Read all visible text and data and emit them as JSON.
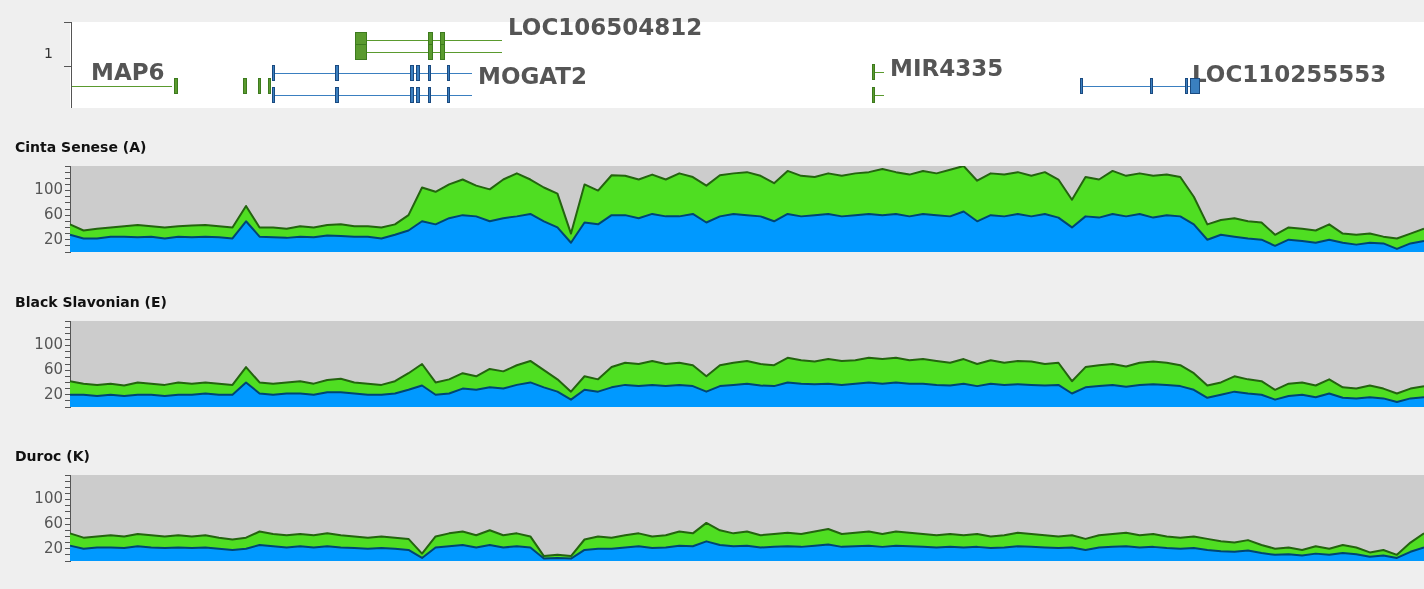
{
  "chart_data": [
    {
      "type": "other",
      "annotations": [
        "1",
        "MAP6",
        "LOC106504812",
        "MOGAT2",
        "MIR4335",
        "LOC110255553"
      ]
    },
    {
      "type": "area",
      "title": "Cinta Senese (A)",
      "stacked": true,
      "tick_labels": "y",
      "grid": false,
      "legend": false,
      "categories": [
        null,
        null,
        null,
        null,
        null,
        null,
        null,
        null,
        null,
        null,
        null,
        null,
        null,
        null,
        null,
        null,
        null,
        null,
        null,
        null,
        null,
        null,
        null,
        null,
        null,
        null,
        null,
        null,
        null,
        null,
        null,
        null,
        null,
        null,
        null,
        null,
        null,
        null,
        null,
        null,
        null,
        null,
        null,
        null,
        null,
        null,
        null,
        null,
        null,
        null,
        null,
        null,
        null,
        null,
        null,
        null,
        null,
        null,
        null,
        null,
        null,
        null,
        null,
        null,
        null,
        null,
        null,
        null,
        null,
        null,
        null,
        null,
        null,
        null,
        null,
        null,
        null,
        null,
        null,
        null,
        null,
        null,
        null,
        null,
        null,
        null,
        null,
        null,
        null,
        null,
        null,
        null,
        null,
        null,
        null,
        null,
        null,
        null,
        null,
        null,
        null
      ],
      "ylim": [
        0,
        140
      ],
      "yticks": [
        {
          "value": 0,
          "label": null
        },
        {
          "value": 10,
          "label": null
        },
        20,
        {
          "value": 30,
          "label": null
        },
        {
          "value": 40,
          "label": null
        },
        {
          "value": 50,
          "label": null
        },
        60,
        {
          "value": 70,
          "label": null
        },
        {
          "value": 80,
          "label": null
        },
        {
          "value": 90,
          "label": null
        },
        100,
        {
          "value": 110,
          "label": null
        },
        {
          "value": 120,
          "label": null
        },
        {
          "value": 130,
          "label": null
        },
        {
          "value": 140,
          "label": null
        }
      ],
      "series": [
        {
          "color": "#0099ff",
          "values": [
            28,
            22,
            22,
            25,
            25,
            24,
            25,
            22,
            25,
            24,
            25,
            24,
            22,
            50,
            25,
            24,
            23,
            25,
            24,
            27,
            26,
            25,
            25,
            22,
            28,
            35,
            50,
            45,
            55,
            60,
            58,
            50,
            55,
            58,
            62,
            50,
            40,
            15,
            48,
            45,
            60,
            60,
            55,
            62,
            58,
            58,
            62,
            48,
            58,
            62,
            60,
            58,
            50,
            62,
            58,
            60,
            62,
            58,
            60,
            62,
            60,
            62,
            58,
            62,
            60,
            58,
            66,
            50,
            60,
            58,
            62,
            58,
            62,
            56,
            40,
            58,
            56,
            62,
            58,
            62,
            56,
            60,
            58,
            45,
            20,
            28,
            25,
            22,
            20,
            10,
            20,
            18,
            15,
            20,
            15,
            12,
            15,
            14,
            5,
            14,
            18
          ]
        },
        {
          "color": "#4fde22",
          "values": [
            17,
            13,
            16,
            15,
            17,
            20,
            17,
            18,
            17,
            19,
            19,
            18,
            18,
            25,
            15,
            16,
            15,
            17,
            16,
            17,
            19,
            17,
            17,
            18,
            17,
            25,
            55,
            53,
            55,
            58,
            50,
            52,
            63,
            70,
            56,
            55,
            55,
            15,
            62,
            55,
            65,
            64,
            63,
            64,
            60,
            70,
            60,
            60,
            67,
            66,
            70,
            66,
            62,
            70,
            66,
            62,
            66,
            66,
            68,
            68,
            75,
            68,
            68,
            70,
            68,
            76,
            74,
            66,
            68,
            68,
            68,
            66,
            68,
            62,
            45,
            64,
            62,
            70,
            66,
            66,
            68,
            66,
            64,
            45,
            25,
            24,
            30,
            28,
            28,
            18,
            20,
            20,
            20,
            25,
            15,
            16,
            15,
            11,
            17,
            16,
            20
          ]
        }
      ]
    },
    {
      "type": "area",
      "title": "Black Slavonian (E)",
      "stacked": true,
      "tick_labels": "y",
      "grid": false,
      "legend": false,
      "categories": [
        null,
        null,
        null,
        null,
        null,
        null,
        null,
        null,
        null,
        null,
        null,
        null,
        null,
        null,
        null,
        null,
        null,
        null,
        null,
        null,
        null,
        null,
        null,
        null,
        null,
        null,
        null,
        null,
        null,
        null,
        null,
        null,
        null,
        null,
        null,
        null,
        null,
        null,
        null,
        null,
        null,
        null,
        null,
        null,
        null,
        null,
        null,
        null,
        null,
        null,
        null,
        null,
        null,
        null,
        null,
        null,
        null,
        null,
        null,
        null,
        null,
        null,
        null,
        null,
        null,
        null,
        null,
        null,
        null,
        null,
        null,
        null,
        null,
        null,
        null,
        null,
        null,
        null,
        null,
        null,
        null,
        null,
        null,
        null,
        null,
        null,
        null,
        null,
        null,
        null,
        null,
        null,
        null,
        null,
        null,
        null,
        null,
        null,
        null,
        null,
        null
      ],
      "ylim": [
        0,
        140
      ],
      "yticks": [
        {
          "value": 0,
          "label": null
        },
        {
          "value": 10,
          "label": null
        },
        20,
        {
          "value": 30,
          "label": null
        },
        {
          "value": 40,
          "label": null
        },
        {
          "value": 50,
          "label": null
        },
        60,
        {
          "value": 70,
          "label": null
        },
        {
          "value": 80,
          "label": null
        },
        {
          "value": 90,
          "label": null
        },
        100,
        {
          "value": 110,
          "label": null
        },
        {
          "value": 120,
          "label": null
        },
        {
          "value": 130,
          "label": null
        },
        {
          "value": 140,
          "label": null
        }
      ],
      "series": [
        {
          "color": "#0099ff",
          "values": [
            20,
            20,
            18,
            20,
            18,
            20,
            20,
            18,
            20,
            20,
            22,
            20,
            20,
            40,
            22,
            20,
            22,
            22,
            20,
            24,
            24,
            22,
            20,
            20,
            22,
            28,
            35,
            20,
            22,
            30,
            28,
            32,
            30,
            36,
            40,
            32,
            25,
            12,
            28,
            25,
            32,
            36,
            34,
            36,
            34,
            36,
            34,
            25,
            34,
            36,
            38,
            35,
            34,
            40,
            38,
            37,
            38,
            36,
            38,
            40,
            38,
            40,
            38,
            38,
            36,
            35,
            38,
            34,
            38,
            36,
            37,
            36,
            35,
            36,
            22,
            32,
            34,
            36,
            33,
            36,
            37,
            36,
            34,
            28,
            15,
            20,
            25,
            22,
            20,
            12,
            18,
            20,
            16,
            22,
            15,
            14,
            16,
            14,
            8,
            14,
            16
          ]
        },
        {
          "color": "#4fde22",
          "values": [
            22,
            18,
            18,
            18,
            17,
            20,
            18,
            18,
            20,
            18,
            18,
            18,
            16,
            25,
            18,
            18,
            18,
            20,
            18,
            20,
            22,
            18,
            18,
            16,
            20,
            27,
            35,
            20,
            23,
            25,
            22,
            30,
            28,
            32,
            35,
            28,
            20,
            13,
            22,
            20,
            33,
            36,
            36,
            39,
            36,
            36,
            34,
            25,
            34,
            36,
            37,
            35,
            34,
            40,
            38,
            37,
            40,
            39,
            38,
            40,
            40,
            40,
            38,
            40,
            39,
            37,
            40,
            36,
            38,
            36,
            38,
            38,
            35,
            36,
            20,
            33,
            34,
            34,
            33,
            36,
            37,
            36,
            34,
            27,
            20,
            20,
            25,
            23,
            22,
            16,
            20,
            20,
            19,
            23,
            17,
            16,
            19,
            16,
            14,
            16,
            18
          ]
        }
      ]
    },
    {
      "type": "area",
      "title": "Duroc (K)",
      "stacked": true,
      "tick_labels": "y",
      "grid": false,
      "legend": false,
      "categories": [
        null,
        null,
        null,
        null,
        null,
        null,
        null,
        null,
        null,
        null,
        null,
        null,
        null,
        null,
        null,
        null,
        null,
        null,
        null,
        null,
        null,
        null,
        null,
        null,
        null,
        null,
        null,
        null,
        null,
        null,
        null,
        null,
        null,
        null,
        null,
        null,
        null,
        null,
        null,
        null,
        null,
        null,
        null,
        null,
        null,
        null,
        null,
        null,
        null,
        null,
        null,
        null,
        null,
        null,
        null,
        null,
        null,
        null,
        null,
        null,
        null,
        null,
        null,
        null,
        null,
        null,
        null,
        null,
        null,
        null,
        null,
        null,
        null,
        null,
        null,
        null,
        null,
        null,
        null,
        null,
        null,
        null,
        null,
        null,
        null,
        null,
        null,
        null,
        null,
        null,
        null,
        null,
        null,
        null,
        null,
        null,
        null,
        null,
        null,
        null,
        null
      ],
      "ylim": [
        0,
        140
      ],
      "yticks": [
        {
          "value": 0,
          "label": null
        },
        {
          "value": 10,
          "label": null
        },
        20,
        {
          "value": 30,
          "label": null
        },
        {
          "value": 40,
          "label": null
        },
        {
          "value": 50,
          "label": null
        },
        60,
        {
          "value": 70,
          "label": null
        },
        {
          "value": 80,
          "label": null
        },
        {
          "value": 90,
          "label": null
        },
        100,
        {
          "value": 110,
          "label": null
        },
        {
          "value": 120,
          "label": null
        },
        {
          "value": 130,
          "label": null
        },
        {
          "value": 140,
          "label": null
        }
      ],
      "series": [
        {
          "color": "#0099ff",
          "values": [
            25,
            20,
            22,
            22,
            21,
            24,
            22,
            21,
            22,
            21,
            22,
            20,
            18,
            20,
            26,
            24,
            22,
            24,
            22,
            24,
            22,
            21,
            20,
            21,
            20,
            18,
            5,
            22,
            24,
            26,
            22,
            26,
            22,
            24,
            22,
            4,
            5,
            4,
            18,
            20,
            20,
            22,
            24,
            21,
            22,
            25,
            24,
            32,
            26,
            24,
            25,
            22,
            23,
            24,
            23,
            25,
            27,
            23,
            24,
            25,
            23,
            25,
            24,
            23,
            22,
            23,
            22,
            23,
            21,
            22,
            24,
            23,
            22,
            21,
            22,
            18,
            22,
            23,
            24,
            22,
            23,
            21,
            20,
            21,
            18,
            16,
            15,
            17,
            13,
            10,
            11,
            9,
            12,
            10,
            13,
            11,
            7,
            9,
            5,
            15,
            22
          ]
        },
        {
          "color": "#4fde22",
          "values": [
            20,
            18,
            18,
            20,
            19,
            20,
            20,
            19,
            20,
            19,
            20,
            18,
            17,
            18,
            22,
            20,
            20,
            20,
            20,
            21,
            20,
            19,
            18,
            19,
            18,
            18,
            7,
            18,
            21,
            22,
            20,
            24,
            20,
            21,
            18,
            4,
            5,
            4,
            17,
            20,
            18,
            20,
            21,
            19,
            20,
            23,
            21,
            30,
            24,
            21,
            23,
            20,
            21,
            22,
            21,
            23,
            25,
            21,
            22,
            23,
            21,
            23,
            22,
            21,
            20,
            21,
            20,
            21,
            19,
            20,
            22,
            21,
            20,
            19,
            20,
            18,
            20,
            21,
            22,
            20,
            21,
            19,
            18,
            19,
            18,
            16,
            15,
            17,
            13,
            10,
            11,
            9,
            12,
            10,
            13,
            11,
            7,
            9,
            5,
            15,
            23
          ]
        }
      ]
    }
  ]
}
